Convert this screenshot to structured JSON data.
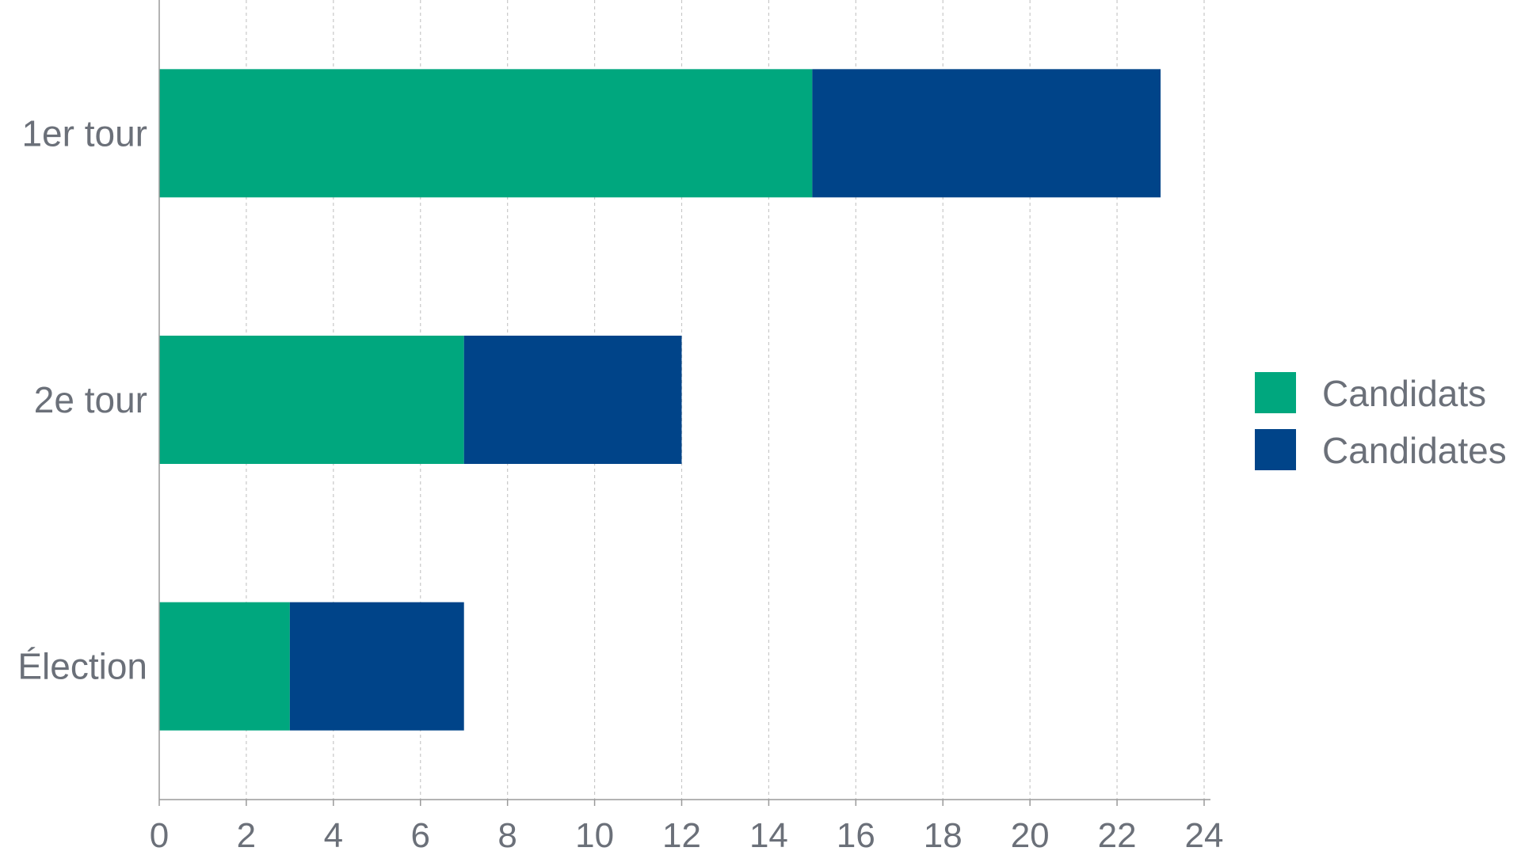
{
  "chart_data": {
    "type": "bar",
    "orientation": "horizontal",
    "stacked": true,
    "categories": [
      "1er tour",
      "2e tour",
      "Élection"
    ],
    "series": [
      {
        "name": "Candidats",
        "values": [
          15,
          7,
          3
        ],
        "color": "#00a77e"
      },
      {
        "name": "Candidates",
        "values": [
          8,
          5,
          4
        ],
        "color": "#004489"
      }
    ],
    "xticks": [
      0,
      2,
      4,
      6,
      8,
      10,
      12,
      14,
      16,
      18,
      20,
      22,
      24
    ],
    "xlim": [
      0,
      24
    ],
    "grid": true,
    "legend_position": "right"
  }
}
